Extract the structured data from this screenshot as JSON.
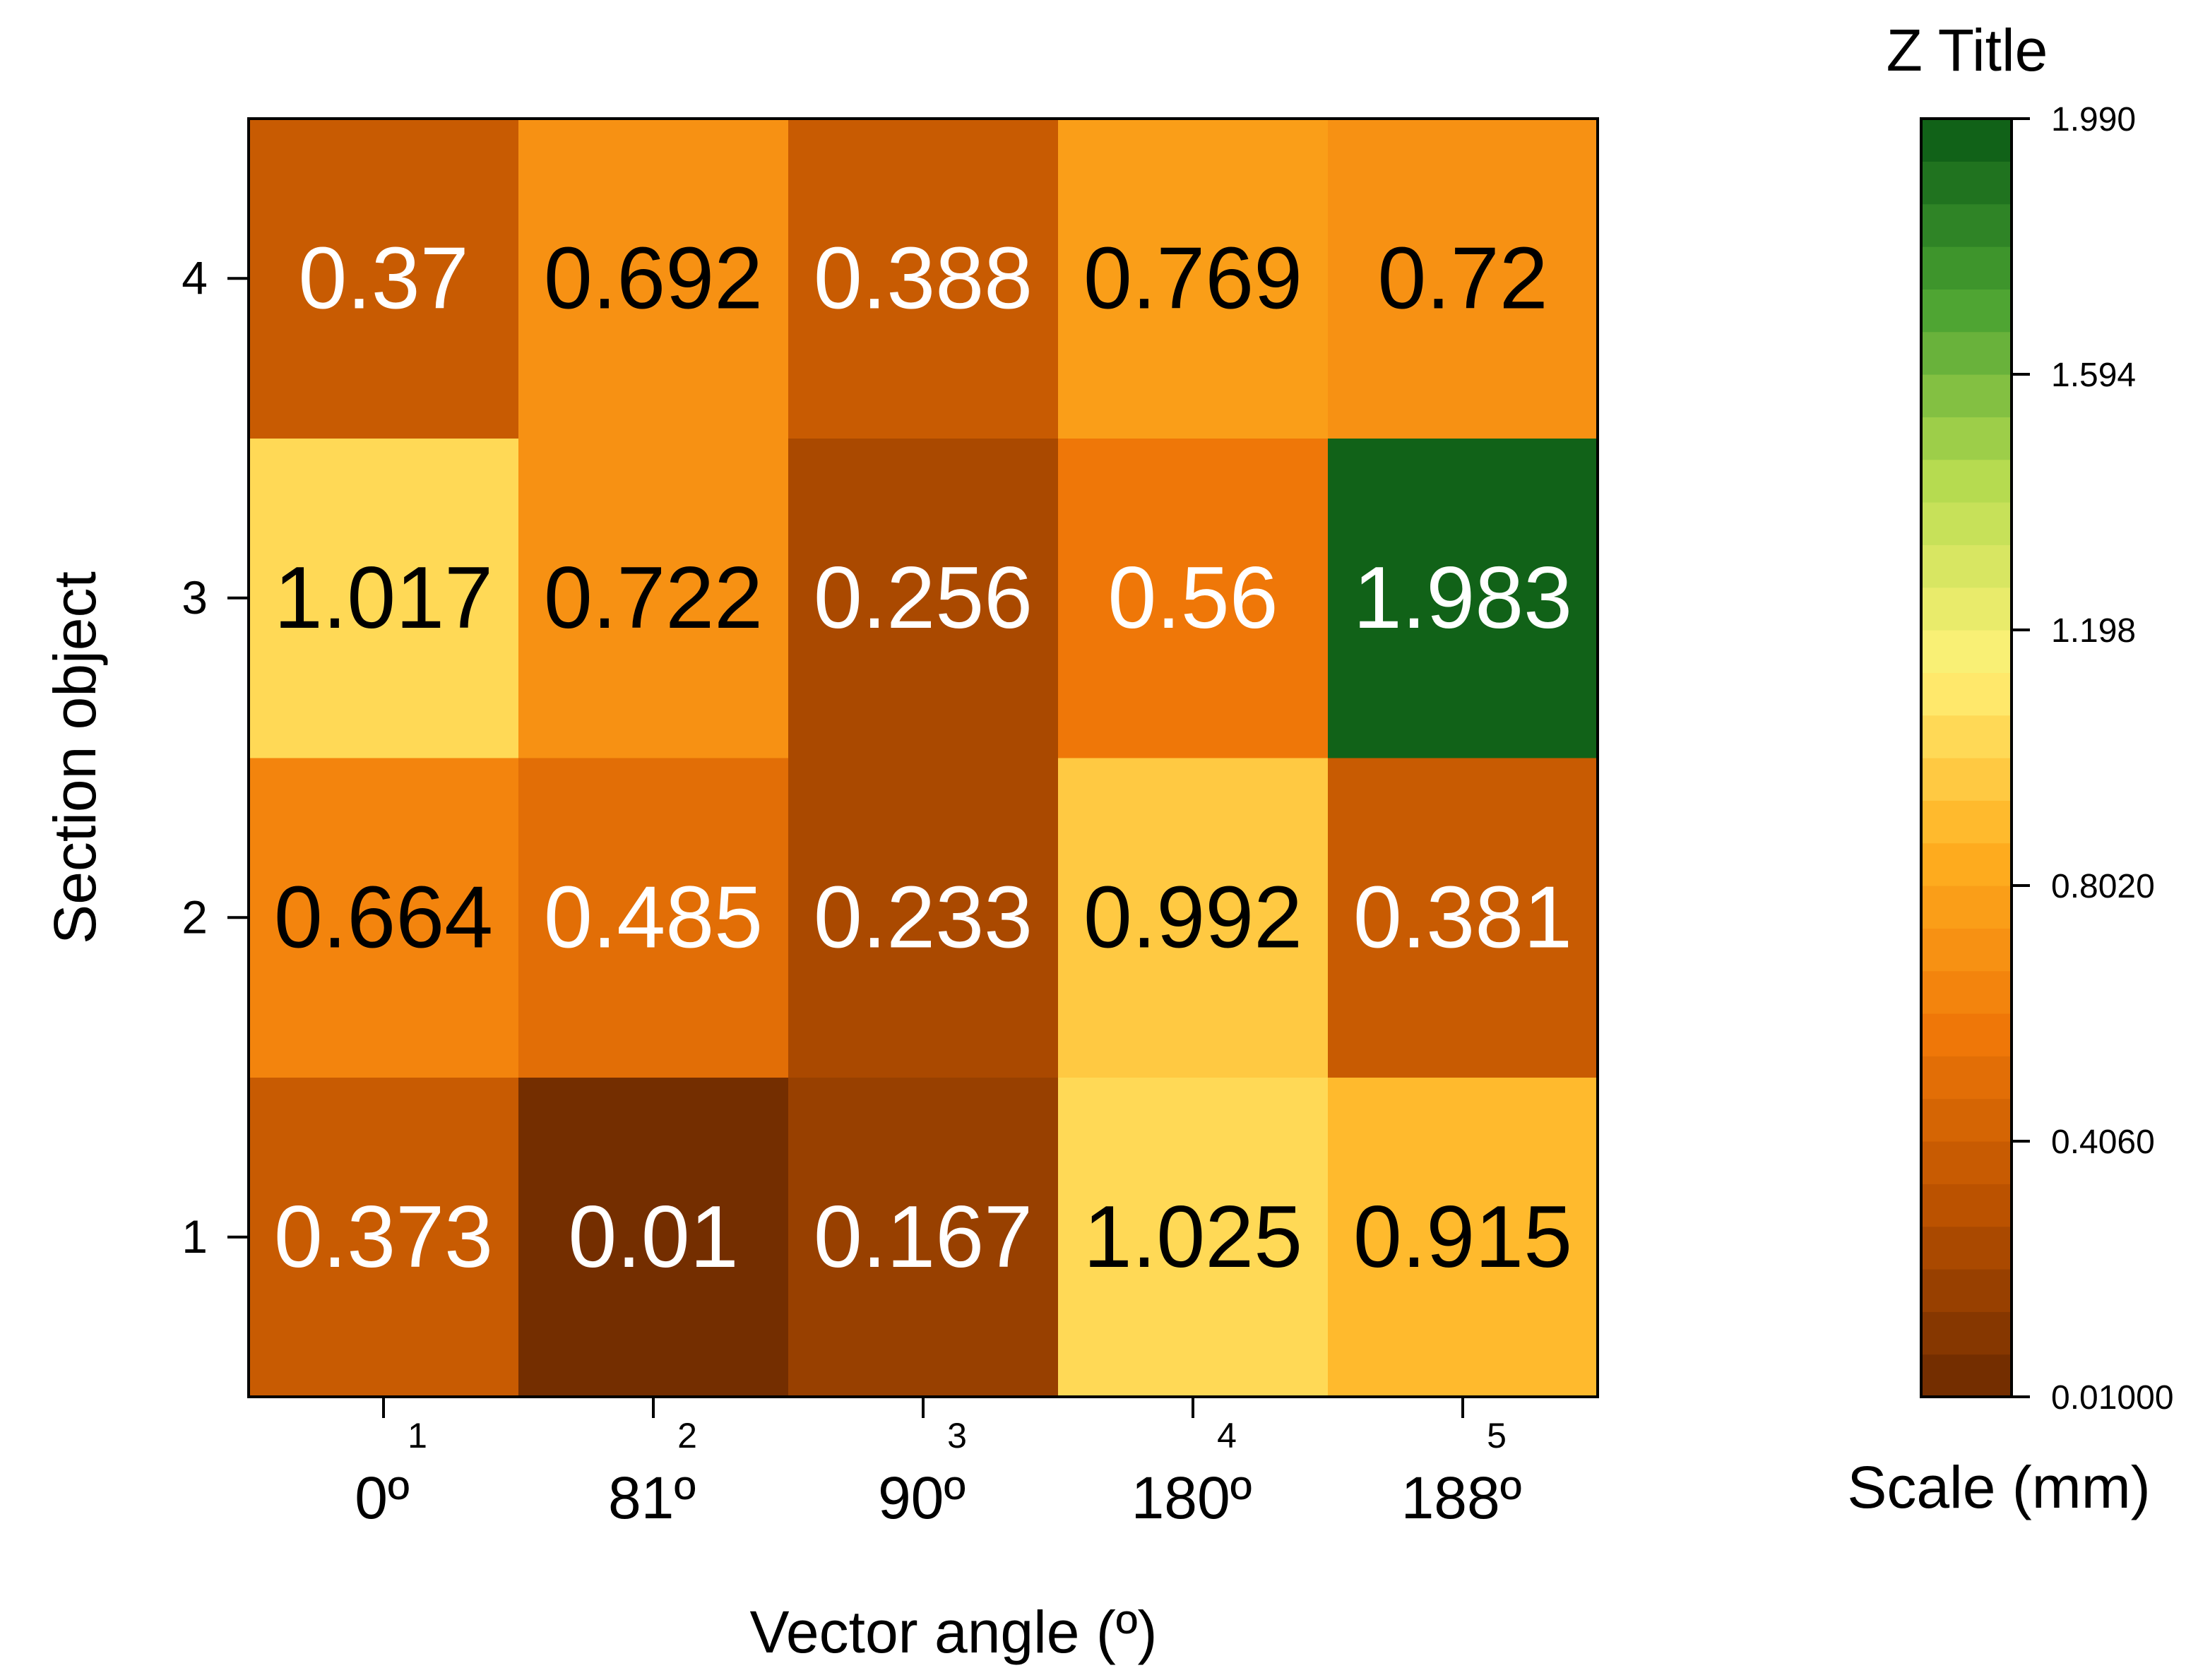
{
  "chart_data": {
    "type": "heatmap",
    "xlabel": "Vector angle (º)",
    "ylabel": "Section object",
    "x_ticks": [
      "1",
      "2",
      "3",
      "4",
      "5"
    ],
    "x_categories": [
      "0º",
      "81º",
      "90º",
      "180º",
      "188º"
    ],
    "y_ticks": [
      "1",
      "2",
      "3",
      "4"
    ],
    "rows": [
      {
        "y": "1",
        "values": [
          0.373,
          0.01,
          0.167,
          1.025,
          0.915
        ],
        "labels": [
          "0.373",
          "0.01",
          "0.167",
          "1.025",
          "0.915"
        ]
      },
      {
        "y": "2",
        "values": [
          0.664,
          0.485,
          0.233,
          0.992,
          0.381
        ],
        "labels": [
          "0.664",
          "0.485",
          "0.233",
          "0.992",
          "0.381"
        ]
      },
      {
        "y": "3",
        "values": [
          1.017,
          0.722,
          0.256,
          0.56,
          1.983
        ],
        "labels": [
          "1.017",
          "0.722",
          "0.256",
          "0.56",
          "1.983"
        ]
      },
      {
        "y": "4",
        "values": [
          0.37,
          0.692,
          0.388,
          0.769,
          0.72
        ],
        "labels": [
          "0.37",
          "0.692",
          "0.388",
          "0.769",
          "0.72"
        ]
      }
    ],
    "colorbar": {
      "title": "Z Title",
      "label": "Scale (mm)",
      "range": [
        0.01,
        1.99
      ],
      "levels": 30,
      "tick_values": [
        0.01,
        0.406,
        0.802,
        1.198,
        1.594,
        1.99
      ],
      "tick_labels": [
        "0.01000",
        "0.4060",
        "0.8020",
        "1.198",
        "1.594",
        "1.990"
      ],
      "colormap": [
        "#6b2a00",
        "#b85000",
        "#f07808",
        "#ffb020",
        "#fff278",
        "#b8dc50",
        "#4aa232",
        "#0a5a14"
      ]
    },
    "legend": "right",
    "grid": false
  }
}
